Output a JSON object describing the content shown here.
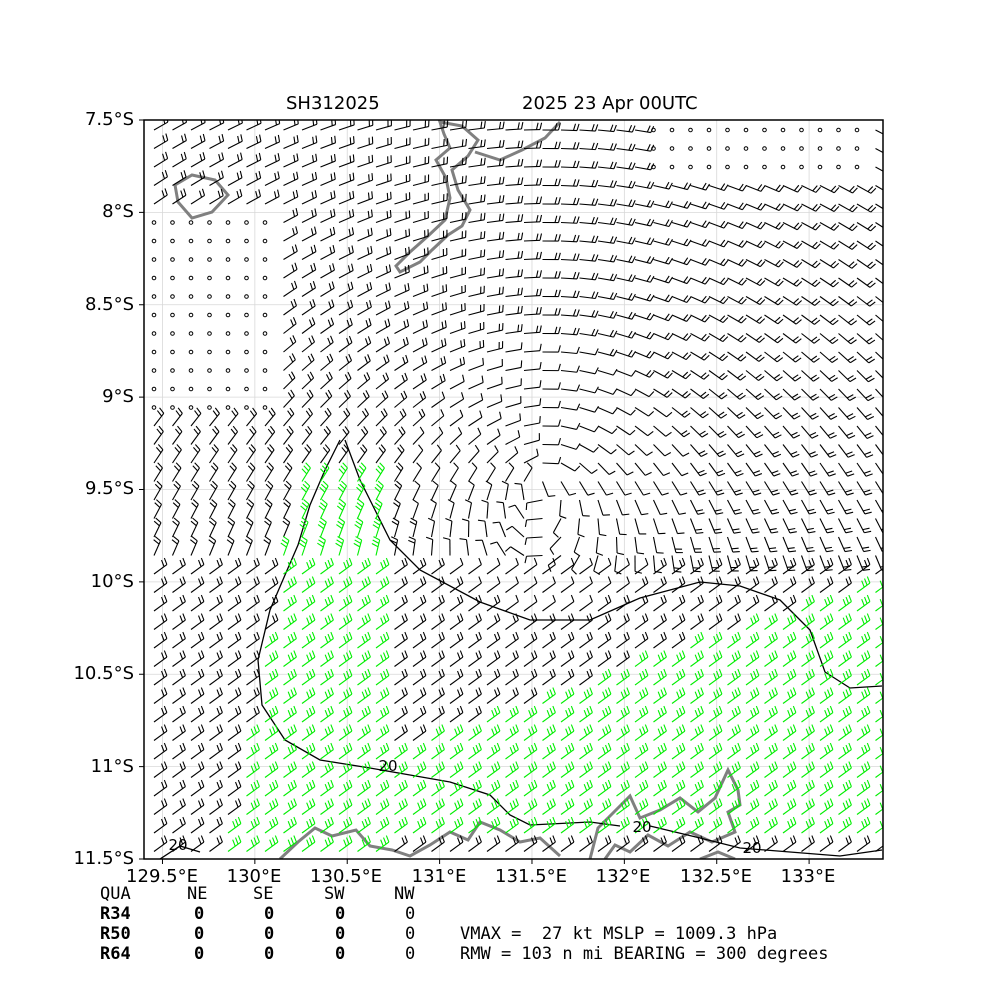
{
  "header": {
    "storm_id": "SH312025",
    "datetime": "2025 23 Apr 00UTC"
  },
  "map": {
    "lon_range": [
      129.4,
      133.4
    ],
    "lat_range": [
      -11.5,
      -7.5
    ],
    "lon_ticks": [
      "129.5°E",
      "130°E",
      "130.5°E",
      "131°E",
      "131.5°E",
      "132°E",
      "132.5°E",
      "133°E"
    ],
    "lat_ticks": [
      "7.5°S",
      "8°S",
      "8.5°S",
      "9°S",
      "9.5°S",
      "10°S",
      "10.5°S",
      "11°S",
      "11.5°S"
    ],
    "contour_label": "20",
    "grid": true,
    "wind_center": {
      "lon": 131.55,
      "lat": -9.45
    },
    "colors": {
      "barb_default": "#000000",
      "barb_strong": "#00ee00",
      "coast": "#808080",
      "contour": "#000000"
    }
  },
  "table": {
    "header": [
      "QUA",
      "NE",
      "SE",
      "SW",
      "NW"
    ],
    "rows": [
      {
        "label": "R34",
        "values": [
          "0",
          "0",
          "0",
          "0"
        ]
      },
      {
        "label": "R50",
        "values": [
          "0",
          "0",
          "0",
          "0"
        ]
      },
      {
        "label": "R64",
        "values": [
          "0",
          "0",
          "0",
          "0"
        ]
      }
    ]
  },
  "stats": {
    "line1": "VMAX =  27 kt MSLP = 1009.3 hPa",
    "line2": "RMW = 103 n mi BEARING = 300 degrees"
  }
}
